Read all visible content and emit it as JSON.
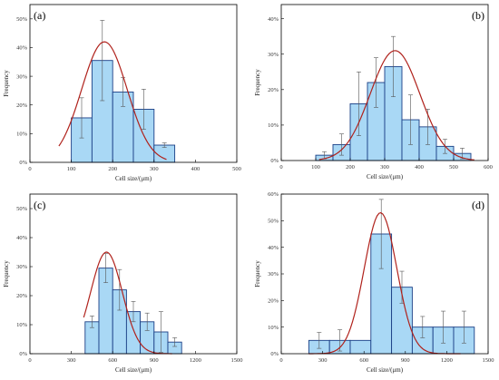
{
  "chart_data": [
    {
      "type": "bar",
      "panel_label": "(a)",
      "xlabel": "Cell size/(μm)",
      "ylabel": "Frequency",
      "xlim": [
        0,
        500
      ],
      "ylim": [
        0,
        0.55
      ],
      "xticks": [
        0,
        100,
        200,
        300,
        400,
        500
      ],
      "yticks": [
        0,
        0.1,
        0.2,
        0.3,
        0.4,
        0.5
      ],
      "ytick_labels": [
        "0%",
        "10%",
        "20%",
        "30%",
        "40%",
        "50%"
      ],
      "bin_width": 50,
      "bins": [
        {
          "center": 125,
          "value": 0.155,
          "err": 0.07
        },
        {
          "center": 175,
          "value": 0.355,
          "err": 0.14
        },
        {
          "center": 225,
          "value": 0.245,
          "err": 0.05
        },
        {
          "center": 275,
          "value": 0.185,
          "err": 0.07
        },
        {
          "center": 325,
          "value": 0.06,
          "err": 0.008
        }
      ],
      "fit": {
        "type": "gaussian",
        "peak": 0.42,
        "mean": 180,
        "sd": 55,
        "x_range": [
          70,
          330
        ]
      }
    },
    {
      "type": "bar",
      "panel_label": "(b)",
      "xlabel": "Cell size/(μm)",
      "ylabel": "Frequency",
      "xlim": [
        0,
        600
      ],
      "ylim": [
        0,
        0.44
      ],
      "xticks": [
        0,
        100,
        200,
        300,
        400,
        500,
        600
      ],
      "yticks": [
        0,
        0.1,
        0.2,
        0.3,
        0.4
      ],
      "ytick_labels": [
        "0%",
        "10%",
        "20%",
        "30%",
        "40%"
      ],
      "bin_width": 50,
      "bins": [
        {
          "center": 125,
          "value": 0.015,
          "err": 0.01
        },
        {
          "center": 175,
          "value": 0.045,
          "err": 0.03
        },
        {
          "center": 225,
          "value": 0.16,
          "err": 0.09
        },
        {
          "center": 275,
          "value": 0.22,
          "err": 0.07
        },
        {
          "center": 325,
          "value": 0.265,
          "err": 0.085
        },
        {
          "center": 375,
          "value": 0.115,
          "err": 0.07
        },
        {
          "center": 425,
          "value": 0.095,
          "err": 0.05
        },
        {
          "center": 475,
          "value": 0.04,
          "err": 0.02
        },
        {
          "center": 525,
          "value": 0.02,
          "err": 0.015
        }
      ],
      "fit": {
        "type": "gaussian",
        "peak": 0.31,
        "mean": 330,
        "sd": 72,
        "x_range": [
          110,
          560
        ]
      }
    },
    {
      "type": "bar",
      "panel_label": "(c)",
      "xlabel": "Cell size/(μm)",
      "ylabel": "Frequency",
      "xlim": [
        0,
        1500
      ],
      "ylim": [
        0,
        0.55
      ],
      "xticks": [
        0,
        300,
        600,
        900,
        1200,
        1500
      ],
      "yticks": [
        0,
        0.1,
        0.2,
        0.3,
        0.4,
        0.5
      ],
      "ytick_labels": [
        "0%",
        "10%",
        "20%",
        "30%",
        "40%",
        "50%"
      ],
      "bin_width": 100,
      "bins": [
        {
          "center": 450,
          "value": 0.11,
          "err": 0.02
        },
        {
          "center": 550,
          "value": 0.295,
          "err": 0.05
        },
        {
          "center": 650,
          "value": 0.22,
          "err": 0.07
        },
        {
          "center": 750,
          "value": 0.145,
          "err": 0.035
        },
        {
          "center": 850,
          "value": 0.11,
          "err": 0.03
        },
        {
          "center": 950,
          "value": 0.075,
          "err": 0.07
        },
        {
          "center": 1050,
          "value": 0.04,
          "err": 0.015
        }
      ],
      "fit": {
        "type": "gaussian",
        "peak": 0.35,
        "mean": 555,
        "sd": 115,
        "x_range": [
          390,
          1030
        ]
      }
    },
    {
      "type": "bar",
      "panel_label": "(d)",
      "xlabel": "Cell size/(μm)",
      "ylabel": "Frequency",
      "xlim": [
        0,
        1500
      ],
      "ylim": [
        0,
        0.6
      ],
      "xticks": [
        0,
        300,
        600,
        900,
        1200,
        1500
      ],
      "yticks": [
        0,
        0.1,
        0.2,
        0.3,
        0.4,
        0.5,
        0.6
      ],
      "ytick_labels": [
        "0%",
        "10%",
        "20%",
        "30%",
        "40%",
        "50%",
        "60%"
      ],
      "bin_width": 150,
      "bins": [
        {
          "center": 275,
          "value": 0.05,
          "err": 0.03
        },
        {
          "center": 425,
          "value": 0.05,
          "err": 0.04
        },
        {
          "center": 575,
          "value": 0.05,
          "err": 0.0
        },
        {
          "center": 725,
          "value": 0.45,
          "err": 0.13
        },
        {
          "center": 875,
          "value": 0.25,
          "err": 0.06
        },
        {
          "center": 1025,
          "value": 0.1,
          "err": 0.04
        },
        {
          "center": 1175,
          "value": 0.1,
          "err": 0.06
        },
        {
          "center": 1325,
          "value": 0.1,
          "err": 0.06
        }
      ],
      "fit": {
        "type": "gaussian",
        "peak": 0.53,
        "mean": 720,
        "sd": 118,
        "x_range": [
          200,
          1300
        ]
      }
    }
  ]
}
